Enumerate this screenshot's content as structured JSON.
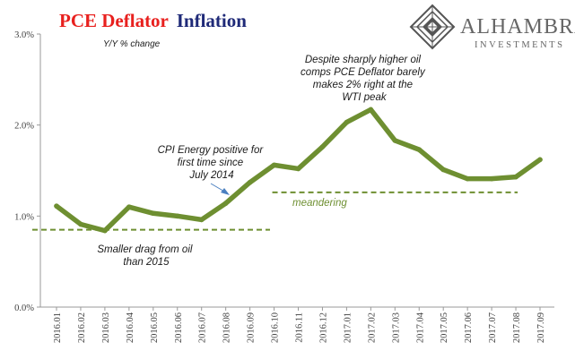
{
  "title_part1": "PCE Deflator",
  "title_part2": "Inflation",
  "logo": {
    "name": "ALHAMBRA",
    "tagline": "INVESTMENTS"
  },
  "colors": {
    "title_red": "#e8201e",
    "title_navy": "#1f2a78",
    "series": "#6e8f31",
    "dashed": "#6e8f31",
    "annotation_green": "#6e8f31",
    "arrow": "#4a7fc0"
  },
  "chart_data": {
    "type": "line",
    "title": "PCE Deflator Inflation",
    "unit_label": "Y/Y % change",
    "ylim": [
      0,
      3
    ],
    "yticks": [
      "0.0%",
      "1.0%",
      "2.0%",
      "3.0%"
    ],
    "grid": false,
    "categories": [
      "2016.01",
      "2016.02",
      "2016.03",
      "2016.04",
      "2016.05",
      "2016.06",
      "2016.07",
      "2016.08",
      "2016.09",
      "2016.10",
      "2016.11",
      "2016.12",
      "2017.01",
      "2017.02",
      "2017.03",
      "2017.04",
      "2017.05",
      "2017.06",
      "2017.07",
      "2017.08",
      "2017.09"
    ],
    "series": [
      {
        "values": [
          1.11,
          0.91,
          0.84,
          1.1,
          1.03,
          1.0,
          0.96,
          1.14,
          1.37,
          1.56,
          1.52,
          1.76,
          2.03,
          2.17,
          1.83,
          1.73,
          1.51,
          1.41,
          1.41,
          1.43,
          1.62
        ]
      }
    ],
    "reference_lines": [
      {
        "y": 0.85,
        "x_start": "2016.01",
        "x_end": "2016.10"
      },
      {
        "y": 1.26,
        "x_start": "2016.10",
        "x_end": "2017.08",
        "label": "meandering"
      }
    ],
    "annotations": [
      {
        "lines": [
          "Smaller drag from oil",
          "than 2015"
        ]
      },
      {
        "lines": [
          "CPI Energy positive for",
          "first time since",
          "July 2014"
        ]
      },
      {
        "lines": [
          "Despite sharply higher oil",
          "comps PCE Deflator barely",
          "makes 2% right at the",
          "WTI peak"
        ]
      }
    ]
  }
}
